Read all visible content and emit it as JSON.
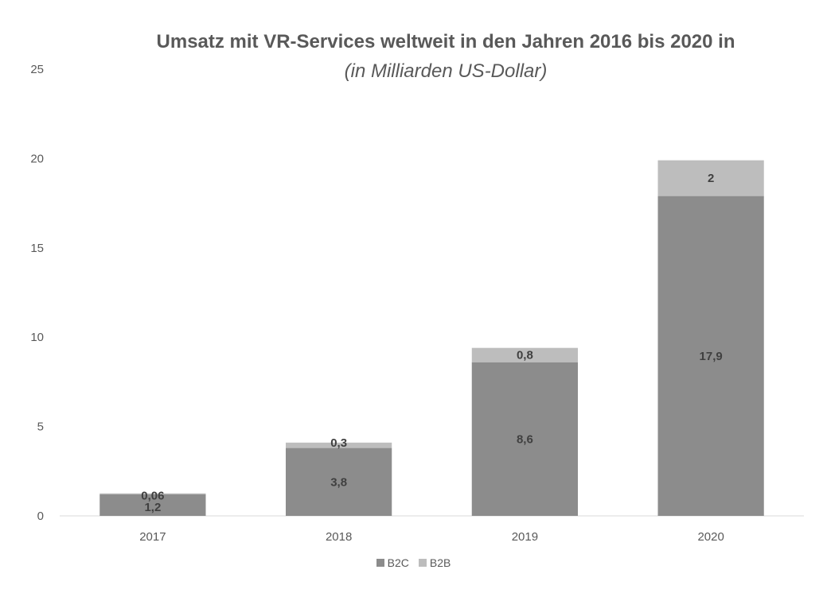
{
  "chart_data": {
    "type": "bar",
    "stacked": true,
    "title": "Umsatz mit VR-Services weltweit in den Jahren 2016 bis 2020 in",
    "subtitle": "(in Milliarden US-Dollar)",
    "categories": [
      "2017",
      "2018",
      "2019",
      "2020"
    ],
    "series": [
      {
        "name": "B2C",
        "values": [
          1.2,
          3.8,
          8.6,
          17.9
        ],
        "labels": [
          "1,2",
          "3,8",
          "8,6",
          "17,9"
        ],
        "color": "#8c8c8c"
      },
      {
        "name": "B2B",
        "values": [
          0.06,
          0.3,
          0.8,
          2
        ],
        "labels": [
          "0,06",
          "0,3",
          "0,8",
          "2"
        ],
        "color": "#bdbdbd"
      }
    ],
    "y_ticks": [
      "0",
      "5",
      "10",
      "15",
      "20",
      "25"
    ],
    "ylim": [
      0,
      25
    ],
    "grid": false,
    "legend": "bottom-center"
  }
}
